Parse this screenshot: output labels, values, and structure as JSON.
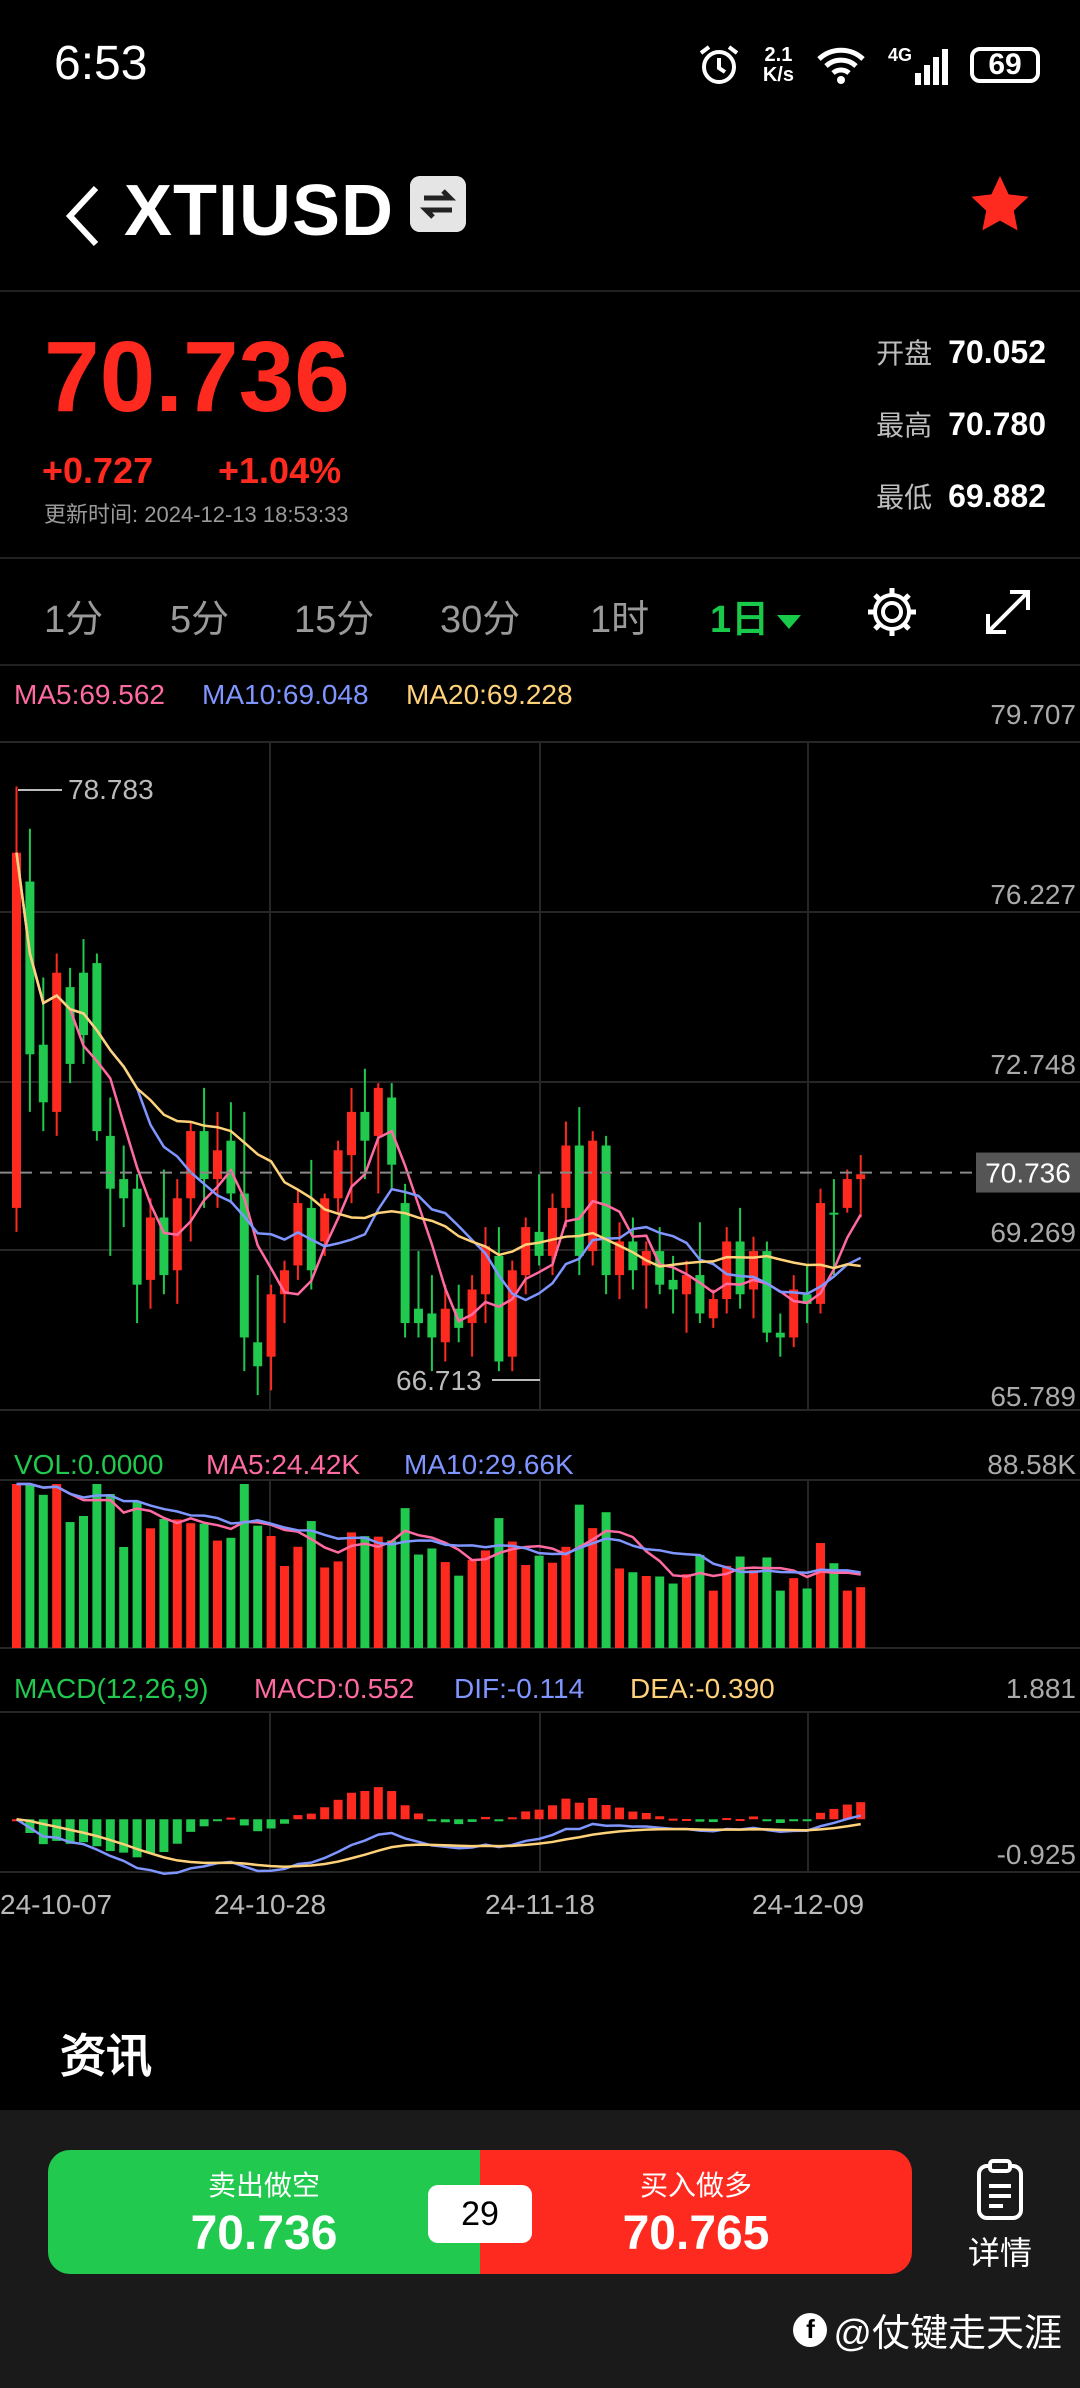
{
  "status_bar": {
    "time": "6:53",
    "net_speed_top": "2.1",
    "net_speed_unit": "K/s",
    "network": "4G",
    "battery": "69"
  },
  "header": {
    "title": "XTIUSD"
  },
  "quote": {
    "price": "70.736",
    "change": "+0.727",
    "change_pct": "+1.04%",
    "updated_label": "更新时间:",
    "updated_time": "2024-12-13 18:53:33",
    "open_label": "开盘",
    "open": "70.052",
    "high_label": "最高",
    "high": "70.780",
    "low_label": "最低",
    "low": "69.882"
  },
  "timeframes": [
    "1分",
    "5分",
    "15分",
    "30分",
    "1时",
    "1日"
  ],
  "active_timeframe": "1日",
  "chart_data": {
    "type": "candlestick",
    "main": {
      "legend": {
        "ma5": "MA5:69.562",
        "ma10": "MA10:69.048",
        "ma20": "MA20:69.228"
      },
      "y_ticks": [
        "79.707",
        "76.227",
        "72.748",
        "69.269",
        "65.789"
      ],
      "ylim": [
        65.789,
        79.707
      ],
      "current_price": 70.736,
      "current_label": "70.736",
      "max_label": "78.783",
      "min_label": "66.713",
      "candles": [
        {
          "o": 70.0,
          "h": 78.78,
          "l": 69.5,
          "c": 77.4,
          "up": true
        },
        {
          "o": 76.8,
          "h": 77.9,
          "l": 72.0,
          "c": 73.2,
          "up": false
        },
        {
          "o": 73.4,
          "h": 74.8,
          "l": 71.6,
          "c": 72.2,
          "up": false
        },
        {
          "o": 72.0,
          "h": 75.3,
          "l": 71.5,
          "c": 74.9,
          "up": true
        },
        {
          "o": 74.6,
          "h": 75.0,
          "l": 72.6,
          "c": 73.0,
          "up": false
        },
        {
          "o": 74.9,
          "h": 75.6,
          "l": 73.0,
          "c": 73.6,
          "up": false
        },
        {
          "o": 75.1,
          "h": 75.3,
          "l": 71.4,
          "c": 71.6,
          "up": false
        },
        {
          "o": 71.5,
          "h": 72.3,
          "l": 69.0,
          "c": 70.4,
          "up": false
        },
        {
          "o": 70.6,
          "h": 71.3,
          "l": 69.6,
          "c": 70.2,
          "up": false
        },
        {
          "o": 70.4,
          "h": 70.7,
          "l": 67.6,
          "c": 68.4,
          "up": false
        },
        {
          "o": 68.5,
          "h": 70.2,
          "l": 67.9,
          "c": 69.8,
          "up": true
        },
        {
          "o": 69.8,
          "h": 70.8,
          "l": 68.2,
          "c": 68.6,
          "up": false
        },
        {
          "o": 68.7,
          "h": 70.6,
          "l": 68.0,
          "c": 70.2,
          "up": true
        },
        {
          "o": 70.2,
          "h": 71.8,
          "l": 69.3,
          "c": 71.6,
          "up": true
        },
        {
          "o": 71.6,
          "h": 72.5,
          "l": 70.0,
          "c": 70.6,
          "up": false
        },
        {
          "o": 70.6,
          "h": 72.0,
          "l": 70.0,
          "c": 71.2,
          "up": true
        },
        {
          "o": 71.4,
          "h": 72.2,
          "l": 70.1,
          "c": 70.3,
          "up": false
        },
        {
          "o": 70.3,
          "h": 72.0,
          "l": 66.6,
          "c": 67.3,
          "up": false
        },
        {
          "o": 67.2,
          "h": 68.6,
          "l": 66.1,
          "c": 66.7,
          "up": false
        },
        {
          "o": 66.9,
          "h": 68.4,
          "l": 66.2,
          "c": 68.2,
          "up": true
        },
        {
          "o": 68.2,
          "h": 68.9,
          "l": 67.6,
          "c": 68.7,
          "up": true
        },
        {
          "o": 68.8,
          "h": 70.4,
          "l": 68.5,
          "c": 70.1,
          "up": true
        },
        {
          "o": 70.0,
          "h": 71.0,
          "l": 68.3,
          "c": 68.7,
          "up": false
        },
        {
          "o": 69.3,
          "h": 70.3,
          "l": 69.0,
          "c": 70.2,
          "up": true
        },
        {
          "o": 70.2,
          "h": 71.4,
          "l": 69.9,
          "c": 71.2,
          "up": true
        },
        {
          "o": 71.1,
          "h": 72.5,
          "l": 70.1,
          "c": 72.0,
          "up": true
        },
        {
          "o": 72.0,
          "h": 72.9,
          "l": 70.6,
          "c": 71.4,
          "up": false
        },
        {
          "o": 71.5,
          "h": 72.6,
          "l": 70.3,
          "c": 72.5,
          "up": true
        },
        {
          "o": 72.3,
          "h": 72.6,
          "l": 70.4,
          "c": 70.9,
          "up": false
        },
        {
          "o": 70.1,
          "h": 70.5,
          "l": 67.3,
          "c": 67.6,
          "up": false
        },
        {
          "o": 67.6,
          "h": 69.1,
          "l": 67.3,
          "c": 67.9,
          "up": false
        },
        {
          "o": 67.8,
          "h": 68.6,
          "l": 66.6,
          "c": 67.3,
          "up": false
        },
        {
          "o": 67.2,
          "h": 68.4,
          "l": 66.8,
          "c": 67.9,
          "up": true
        },
        {
          "o": 67.9,
          "h": 68.4,
          "l": 67.2,
          "c": 67.5,
          "up": false
        },
        {
          "o": 67.6,
          "h": 68.6,
          "l": 66.9,
          "c": 68.3,
          "up": true
        },
        {
          "o": 68.2,
          "h": 69.6,
          "l": 67.6,
          "c": 69.2,
          "up": true
        },
        {
          "o": 69.0,
          "h": 69.6,
          "l": 66.6,
          "c": 66.8,
          "up": false
        },
        {
          "o": 66.9,
          "h": 68.9,
          "l": 66.6,
          "c": 68.7,
          "up": true
        },
        {
          "o": 68.6,
          "h": 69.8,
          "l": 68.2,
          "c": 69.6,
          "up": true
        },
        {
          "o": 69.5,
          "h": 70.7,
          "l": 68.8,
          "c": 69.0,
          "up": false
        },
        {
          "o": 69.0,
          "h": 70.3,
          "l": 68.6,
          "c": 70.0,
          "up": true
        },
        {
          "o": 70.0,
          "h": 71.8,
          "l": 69.6,
          "c": 71.3,
          "up": true
        },
        {
          "o": 71.3,
          "h": 72.1,
          "l": 68.6,
          "c": 69.0,
          "up": false
        },
        {
          "o": 69.1,
          "h": 71.6,
          "l": 68.8,
          "c": 71.4,
          "up": true
        },
        {
          "o": 71.3,
          "h": 71.5,
          "l": 68.2,
          "c": 68.6,
          "up": false
        },
        {
          "o": 68.6,
          "h": 69.7,
          "l": 68.1,
          "c": 69.3,
          "up": true
        },
        {
          "o": 69.3,
          "h": 69.8,
          "l": 68.3,
          "c": 68.7,
          "up": false
        },
        {
          "o": 68.8,
          "h": 69.3,
          "l": 67.9,
          "c": 69.1,
          "up": true
        },
        {
          "o": 69.1,
          "h": 69.6,
          "l": 68.2,
          "c": 68.4,
          "up": false
        },
        {
          "o": 68.5,
          "h": 69.0,
          "l": 67.8,
          "c": 68.3,
          "up": false
        },
        {
          "o": 68.2,
          "h": 68.9,
          "l": 67.4,
          "c": 68.6,
          "up": true
        },
        {
          "o": 68.6,
          "h": 69.7,
          "l": 67.6,
          "c": 67.8,
          "up": false
        },
        {
          "o": 67.7,
          "h": 68.3,
          "l": 67.5,
          "c": 68.1,
          "up": true
        },
        {
          "o": 68.1,
          "h": 69.6,
          "l": 67.8,
          "c": 69.3,
          "up": true
        },
        {
          "o": 69.3,
          "h": 70.0,
          "l": 67.9,
          "c": 68.2,
          "up": false
        },
        {
          "o": 68.3,
          "h": 69.4,
          "l": 67.7,
          "c": 69.1,
          "up": true
        },
        {
          "o": 69.1,
          "h": 69.3,
          "l": 67.2,
          "c": 67.4,
          "up": false
        },
        {
          "o": 67.4,
          "h": 67.8,
          "l": 66.9,
          "c": 67.3,
          "up": false
        },
        {
          "o": 67.3,
          "h": 68.6,
          "l": 67.1,
          "c": 68.3,
          "up": true
        },
        {
          "o": 68.2,
          "h": 68.8,
          "l": 67.6,
          "c": 68.0,
          "up": false
        },
        {
          "o": 68.0,
          "h": 70.4,
          "l": 67.8,
          "c": 70.1,
          "up": true
        },
        {
          "o": 69.9,
          "h": 70.6,
          "l": 68.6,
          "c": 69.9,
          "up": false
        },
        {
          "o": 70.0,
          "h": 70.8,
          "l": 69.9,
          "c": 70.6,
          "up": true
        },
        {
          "o": 70.6,
          "h": 71.1,
          "l": 69.8,
          "c": 70.7,
          "up": true
        }
      ]
    },
    "volume": {
      "legend": {
        "vol": "VOL:0.0000",
        "ma5": "MA5:24.42K",
        "ma10": "MA10:29.66K"
      },
      "max_label": "88.58K",
      "max": 88.58
    },
    "macd": {
      "legend": {
        "name": "MACD(12,26,9)",
        "macd": "MACD:0.552",
        "dif": "DIF:-0.114",
        "dea": "DEA:-0.390"
      },
      "top_label": "1.881",
      "bottom_label": "-0.925",
      "ylim": [
        -0.925,
        1.881
      ]
    },
    "x_labels": [
      "24-10-07",
      "24-10-28",
      "24-11-18",
      "24-12-09"
    ]
  },
  "news_title": "资讯",
  "trade": {
    "sell_label": "卖出做空",
    "sell_price": "70.736",
    "buy_label": "买入做多",
    "buy_price": "70.765",
    "spread": "29",
    "detail_label": "详情"
  },
  "watermark": "@仗键走天涯",
  "colors": {
    "up": "#ff2a1f",
    "down": "#21c94e",
    "ma5": "#ff6aa2",
    "ma10": "#7f95ff",
    "ma20": "#ffd27a"
  }
}
